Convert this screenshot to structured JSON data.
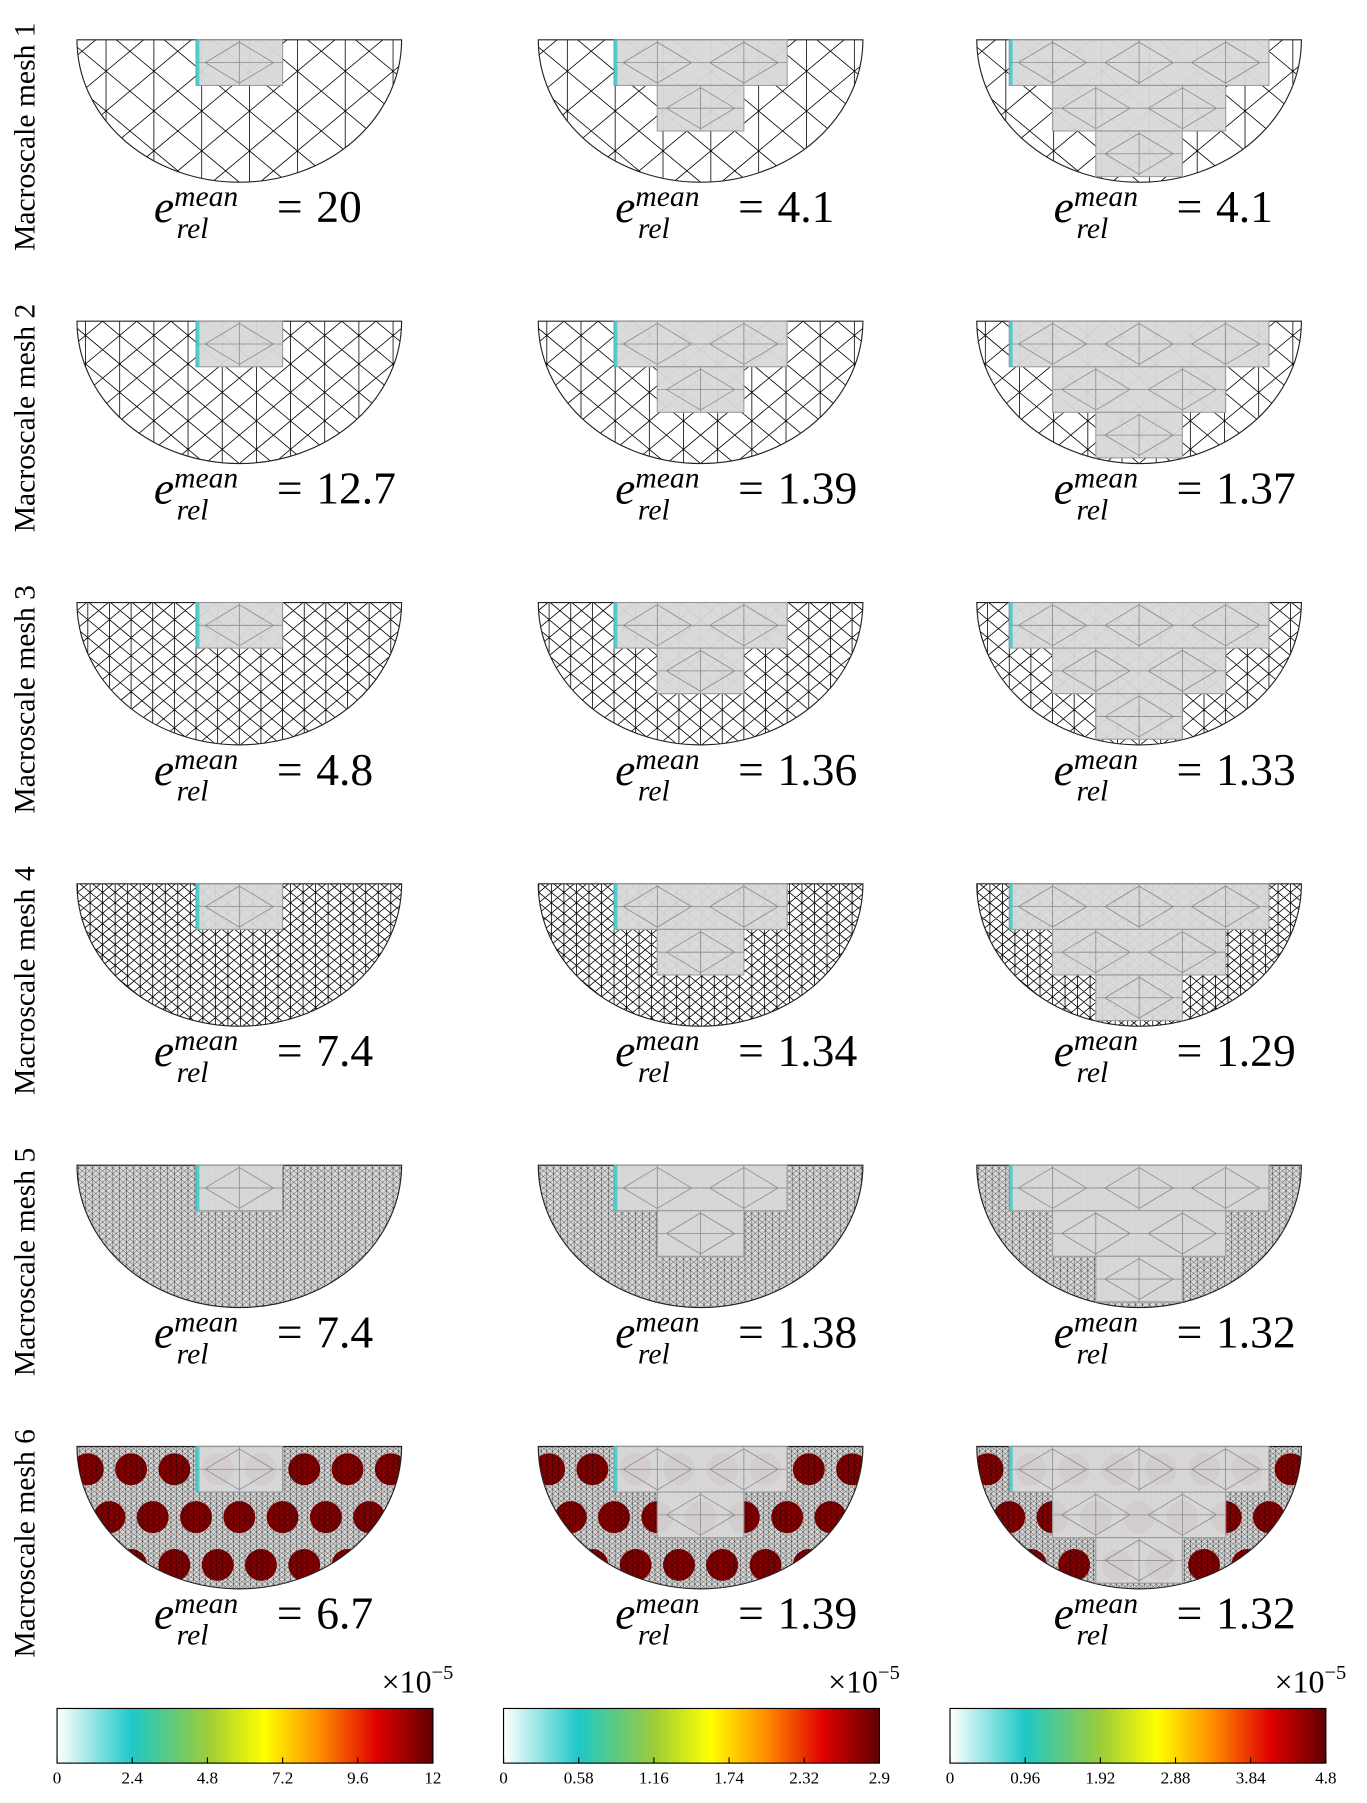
{
  "rows": [
    {
      "label": "Macroscale mesh 1",
      "values": [
        20,
        4.1,
        4.1
      ]
    },
    {
      "label": "Macroscale mesh 2",
      "values": [
        12.7,
        1.39,
        1.37
      ]
    },
    {
      "label": "Macroscale mesh 3",
      "values": [
        4.8,
        1.36,
        1.33
      ]
    },
    {
      "label": "Macroscale mesh 4",
      "values": [
        7.4,
        1.34,
        1.29
      ]
    },
    {
      "label": "Macroscale mesh 5",
      "values": [
        7.4,
        1.38,
        1.32
      ]
    },
    {
      "label": "Macroscale mesh 6",
      "values": [
        6.7,
        1.39,
        1.32
      ]
    }
  ],
  "error_label": {
    "symbol": "e",
    "superscript": "mean",
    "subscript": "rel",
    "equals": "="
  },
  "colorbars": [
    {
      "ticks": [
        0,
        2.4,
        4.8,
        7.2,
        9.6,
        12
      ],
      "multiplier": "×10",
      "exponent": "−5"
    },
    {
      "ticks": [
        0,
        0.58,
        1.16,
        1.74,
        2.32,
        2.9
      ],
      "multiplier": "×10",
      "exponent": "−5"
    },
    {
      "ticks": [
        0,
        0.96,
        1.92,
        2.88,
        3.84,
        4.8
      ],
      "multiplier": "×10",
      "exponent": "−5"
    }
  ]
}
